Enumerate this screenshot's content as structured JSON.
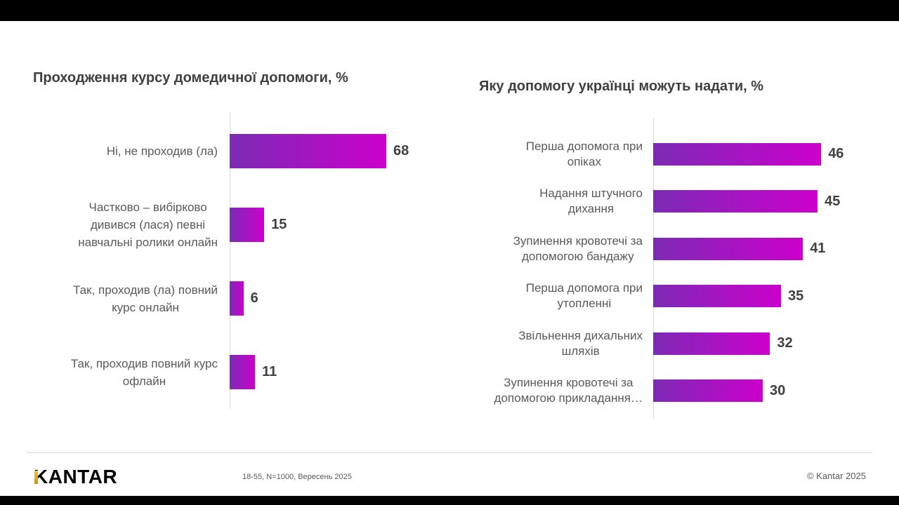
{
  "chart_data": [
    {
      "type": "bar",
      "orientation": "horizontal",
      "title": "Проходження курсу домедичної допомоги, %",
      "categories": [
        "Ні, не проходив (ла)",
        "Частково – вибірково\nдивився (лася) певні\nнавчальні  ролики онлайн",
        "Так, проходив (ла) повний\nкурс онлайн",
        "Так, проходив повний курс\nофлайн"
      ],
      "values": [
        68,
        15,
        6,
        11
      ],
      "data_labels": true,
      "axis_visible": true,
      "grid": false,
      "legend": "none"
    },
    {
      "type": "bar",
      "orientation": "horizontal",
      "title": "Яку допомогу українці можуть надати, %",
      "categories": [
        "Перша допомога при\nопіках",
        "Надання штучного\nдихання",
        "Зупинення кровотечі за\nдопомогою бандажу",
        "Перша допомога при\nутопленні",
        "Звільнення дихальних\nшляхів",
        "Зупинення кровотечі за\nдопомогою прикладання…"
      ],
      "values": [
        46,
        45,
        41,
        35,
        32,
        30
      ],
      "data_labels": true,
      "axis_visible": true,
      "grid": false,
      "legend": "none"
    }
  ],
  "colors": {
    "bar_gradient_start": "#7C2BB5",
    "bar_gradient_end": "#CC00CC",
    "title_text": "#404040",
    "label_text": "#595959",
    "value_text": "#404040",
    "axis_line": "#D9D9D9",
    "logo_gold": "#D9A31F",
    "letterbox": "#000000"
  },
  "footer": {
    "logo": "KANTAR",
    "note": "18-55, N=1000, Вересень 2025",
    "copyright": "© Kantar 2025"
  }
}
